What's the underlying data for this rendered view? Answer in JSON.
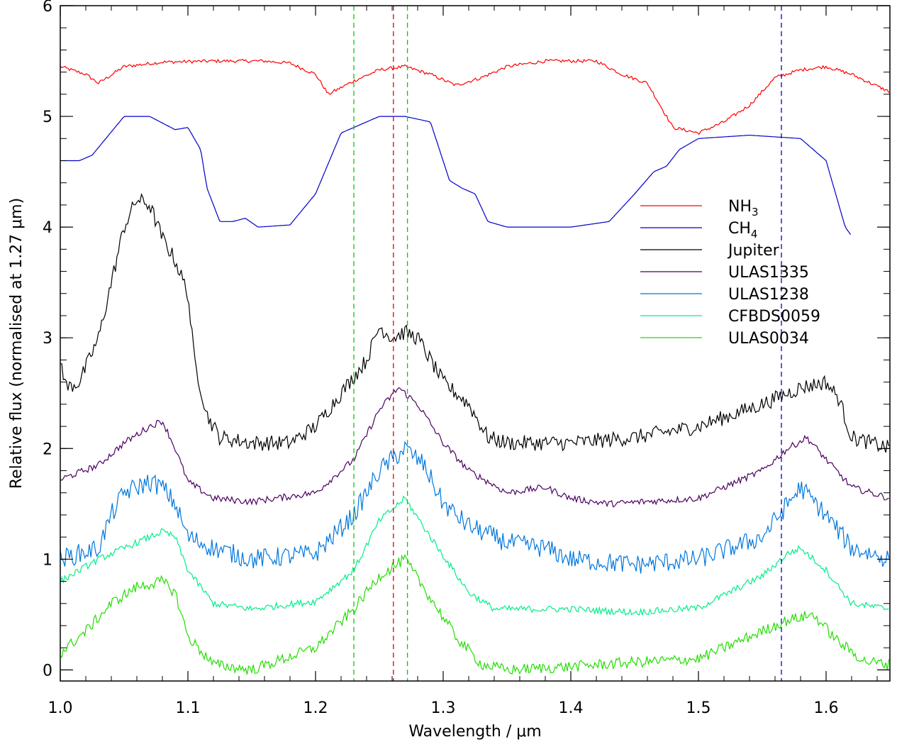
{
  "chart_data": {
    "type": "line",
    "title": "",
    "xlabel": "Wavelength / μm",
    "ylabel": "Relative flux (normalised at 1.27 μm)",
    "xlim": [
      1.0,
      1.65
    ],
    "ylim": [
      -0.1,
      6.0
    ],
    "x_ticks": [
      "1.0",
      "1.1",
      "1.2",
      "1.3",
      "1.4",
      "1.5",
      "1.6"
    ],
    "y_ticks": [
      "0",
      "1",
      "2",
      "3",
      "4",
      "5",
      "6"
    ],
    "legend_position": "right",
    "grid": false,
    "vertical_lines": [
      {
        "x": 1.23,
        "color": "#00cc00",
        "style": "dashed"
      },
      {
        "x": 1.261,
        "color": "#dd0000",
        "style": "dashed"
      },
      {
        "x": 1.272,
        "color": "#00cc00",
        "style": "dashed"
      },
      {
        "x": 1.565,
        "color": "#0000cc",
        "style": "dashed"
      }
    ],
    "series": [
      {
        "name": "NH3",
        "label_main": "NH",
        "label_sub": "3",
        "color": "#ff0000",
        "noise": 0.015,
        "x": [
          1.0,
          1.02,
          1.03,
          1.05,
          1.08,
          1.12,
          1.16,
          1.18,
          1.2,
          1.21,
          1.23,
          1.25,
          1.27,
          1.29,
          1.31,
          1.33,
          1.35,
          1.38,
          1.42,
          1.44,
          1.46,
          1.47,
          1.48,
          1.5,
          1.52,
          1.54,
          1.56,
          1.58,
          1.6,
          1.62,
          1.65
        ],
        "y": [
          5.45,
          5.38,
          5.3,
          5.45,
          5.49,
          5.5,
          5.5,
          5.48,
          5.38,
          5.2,
          5.32,
          5.42,
          5.45,
          5.38,
          5.28,
          5.35,
          5.45,
          5.5,
          5.5,
          5.38,
          5.3,
          5.1,
          4.9,
          4.85,
          4.95,
          5.1,
          5.35,
          5.42,
          5.45,
          5.38,
          5.22
        ]
      },
      {
        "name": "CH4",
        "label_main": "CH",
        "label_sub": "4",
        "color": "#0000cc",
        "noise": 0.0,
        "x": [
          1.0,
          1.015,
          1.025,
          1.05,
          1.07,
          1.09,
          1.1,
          1.11,
          1.115,
          1.125,
          1.135,
          1.145,
          1.155,
          1.18,
          1.2,
          1.22,
          1.23,
          1.25,
          1.27,
          1.29,
          1.305,
          1.315,
          1.325,
          1.335,
          1.35,
          1.4,
          1.43,
          1.45,
          1.465,
          1.475,
          1.485,
          1.5,
          1.54,
          1.58,
          1.6,
          1.615,
          1.62
        ],
        "y": [
          4.6,
          4.6,
          4.65,
          5.0,
          5.0,
          4.88,
          4.9,
          4.7,
          4.35,
          4.05,
          4.05,
          4.08,
          4.0,
          4.02,
          4.3,
          4.85,
          4.9,
          5.0,
          5.0,
          4.95,
          4.42,
          4.35,
          4.3,
          4.05,
          4.0,
          4.0,
          4.05,
          4.3,
          4.5,
          4.55,
          4.7,
          4.8,
          4.83,
          4.8,
          4.6,
          4.0,
          3.92
        ]
      },
      {
        "name": "Jupiter",
        "label_main": "Jupiter",
        "label_sub": "",
        "color": "#000000",
        "noise": 0.07,
        "x": [
          1.0,
          1.005,
          1.015,
          1.03,
          1.04,
          1.05,
          1.06,
          1.07,
          1.08,
          1.09,
          1.1,
          1.105,
          1.115,
          1.125,
          1.15,
          1.18,
          1.2,
          1.22,
          1.24,
          1.25,
          1.26,
          1.27,
          1.28,
          1.29,
          1.3,
          1.32,
          1.335,
          1.35,
          1.4,
          1.45,
          1.5,
          1.55,
          1.58,
          1.6,
          1.61,
          1.62,
          1.65
        ],
        "y": [
          2.8,
          2.55,
          2.6,
          3.0,
          3.5,
          4.0,
          4.25,
          4.2,
          3.9,
          3.7,
          3.4,
          2.8,
          2.3,
          2.1,
          2.05,
          2.05,
          2.2,
          2.5,
          2.8,
          3.1,
          3.0,
          3.05,
          3.0,
          2.8,
          2.6,
          2.4,
          2.1,
          2.05,
          2.05,
          2.1,
          2.2,
          2.4,
          2.55,
          2.6,
          2.45,
          2.1,
          2.0
        ]
      },
      {
        "name": "ULAS1335",
        "label_main": "ULAS1335",
        "label_sub": "",
        "color": "#4b0060",
        "noise": 0.03,
        "x": [
          1.0,
          1.03,
          1.05,
          1.07,
          1.08,
          1.09,
          1.1,
          1.12,
          1.15,
          1.2,
          1.23,
          1.25,
          1.265,
          1.28,
          1.3,
          1.32,
          1.35,
          1.38,
          1.4,
          1.43,
          1.5,
          1.55,
          1.57,
          1.585,
          1.6,
          1.62,
          1.65
        ],
        "y": [
          1.72,
          1.85,
          2.05,
          2.2,
          2.25,
          2.0,
          1.7,
          1.55,
          1.52,
          1.6,
          1.9,
          2.35,
          2.55,
          2.4,
          2.05,
          1.8,
          1.6,
          1.65,
          1.55,
          1.5,
          1.55,
          1.8,
          2.0,
          2.1,
          1.9,
          1.65,
          1.55
        ]
      },
      {
        "name": "ULAS1238",
        "label_main": "ULAS1238",
        "label_sub": "",
        "color": "#0077dd",
        "noise": 0.09,
        "x": [
          1.0,
          1.03,
          1.04,
          1.05,
          1.07,
          1.08,
          1.09,
          1.1,
          1.12,
          1.15,
          1.2,
          1.23,
          1.25,
          1.27,
          1.285,
          1.3,
          1.32,
          1.35,
          1.38,
          1.4,
          1.45,
          1.5,
          1.55,
          1.57,
          1.58,
          1.6,
          1.62,
          1.65
        ],
        "y": [
          1.0,
          1.1,
          1.4,
          1.6,
          1.7,
          1.65,
          1.5,
          1.2,
          1.1,
          1.0,
          1.05,
          1.4,
          1.8,
          2.0,
          1.85,
          1.5,
          1.3,
          1.15,
          1.1,
          1.0,
          0.95,
          1.0,
          1.2,
          1.5,
          1.65,
          1.4,
          1.1,
          1.0
        ]
      },
      {
        "name": "CFBDS0059",
        "label_main": "CFBDS0059",
        "label_sub": "",
        "color": "#00ee88",
        "noise": 0.03,
        "x": [
          1.0,
          1.03,
          1.06,
          1.08,
          1.09,
          1.1,
          1.12,
          1.15,
          1.2,
          1.23,
          1.25,
          1.27,
          1.29,
          1.32,
          1.34,
          1.4,
          1.45,
          1.5,
          1.55,
          1.57,
          1.58,
          1.6,
          1.62,
          1.65
        ],
        "y": [
          0.8,
          1.0,
          1.15,
          1.25,
          1.2,
          0.9,
          0.6,
          0.55,
          0.62,
          0.9,
          1.35,
          1.55,
          1.2,
          0.7,
          0.55,
          0.55,
          0.52,
          0.56,
          0.85,
          1.05,
          1.1,
          0.9,
          0.6,
          0.55
        ]
      },
      {
        "name": "ULAS0034",
        "label_main": "ULAS0034",
        "label_sub": "",
        "color": "#22dd00",
        "noise": 0.05,
        "x": [
          1.0,
          1.02,
          1.04,
          1.06,
          1.08,
          1.09,
          1.1,
          1.12,
          1.15,
          1.2,
          1.23,
          1.25,
          1.27,
          1.29,
          1.31,
          1.33,
          1.35,
          1.4,
          1.45,
          1.5,
          1.55,
          1.57,
          1.59,
          1.61,
          1.63,
          1.65
        ],
        "y": [
          0.15,
          0.35,
          0.6,
          0.75,
          0.8,
          0.7,
          0.3,
          0.05,
          0.0,
          0.2,
          0.55,
          0.85,
          1.0,
          0.65,
          0.3,
          0.05,
          0.0,
          0.03,
          0.07,
          0.1,
          0.35,
          0.45,
          0.5,
          0.25,
          0.08,
          0.05
        ]
      }
    ]
  }
}
